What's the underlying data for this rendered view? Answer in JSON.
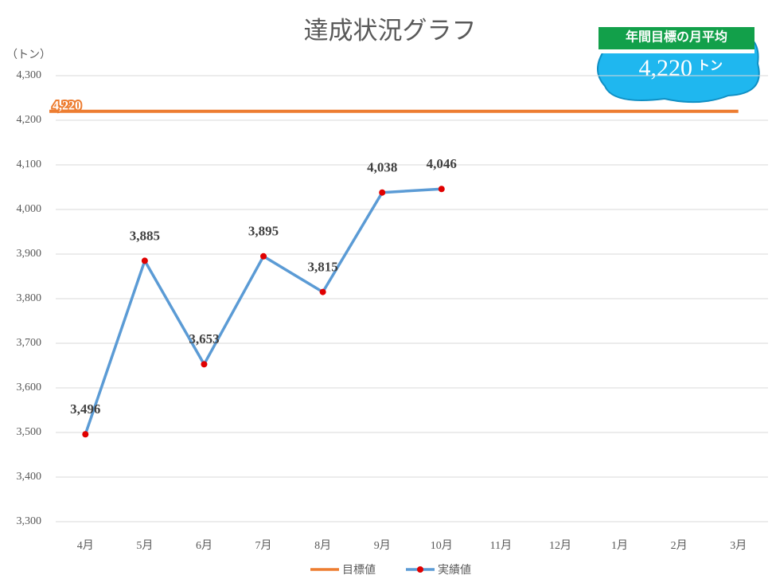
{
  "chart_data": {
    "type": "line",
    "title": "達成状況グラフ",
    "y_label": "（トン）",
    "categories": [
      "4月",
      "5月",
      "6月",
      "7月",
      "8月",
      "9月",
      "10月",
      "11月",
      "12月",
      "1月",
      "2月",
      "3月"
    ],
    "series": [
      {
        "name": "目標値",
        "color": "#ed7d31",
        "values": [
          4220,
          4220,
          4220,
          4220,
          4220,
          4220,
          4220,
          4220,
          4220,
          4220,
          4220,
          4220
        ],
        "value_labels": [
          "4,220",
          null,
          null,
          null,
          null,
          null,
          null,
          null,
          null,
          null,
          null,
          null
        ]
      },
      {
        "name": "実績値",
        "color": "#5b9bd5",
        "marker_color": "#e00000",
        "values": [
          3496,
          3885,
          3653,
          3895,
          3815,
          4038,
          4046,
          null,
          null,
          null,
          null,
          null
        ],
        "value_labels": [
          "3,496",
          "3,885",
          "3,653",
          "3,895",
          "3,815",
          "4,038",
          "4,046",
          null,
          null,
          null,
          null,
          null
        ]
      }
    ],
    "ylim": [
      3300,
      4300
    ],
    "yticks": [
      {
        "value": 3300,
        "label": "3,300"
      },
      {
        "value": 3400,
        "label": "3,400"
      },
      {
        "value": 3500,
        "label": "3,500"
      },
      {
        "value": 3600,
        "label": "3,600"
      },
      {
        "value": 3700,
        "label": "3,700"
      },
      {
        "value": 3800,
        "label": "3,800"
      },
      {
        "value": 3900,
        "label": "3,900"
      },
      {
        "value": 4000,
        "label": "4,000"
      },
      {
        "value": 4100,
        "label": "4,100"
      },
      {
        "value": 4200,
        "label": "4,200"
      },
      {
        "value": 4300,
        "label": "4,300"
      }
    ],
    "grid": true,
    "legend": "bottom",
    "badge": {
      "title": "年間目標の月平均",
      "value": 4220,
      "label": "4,220",
      "unit": "トン"
    }
  }
}
